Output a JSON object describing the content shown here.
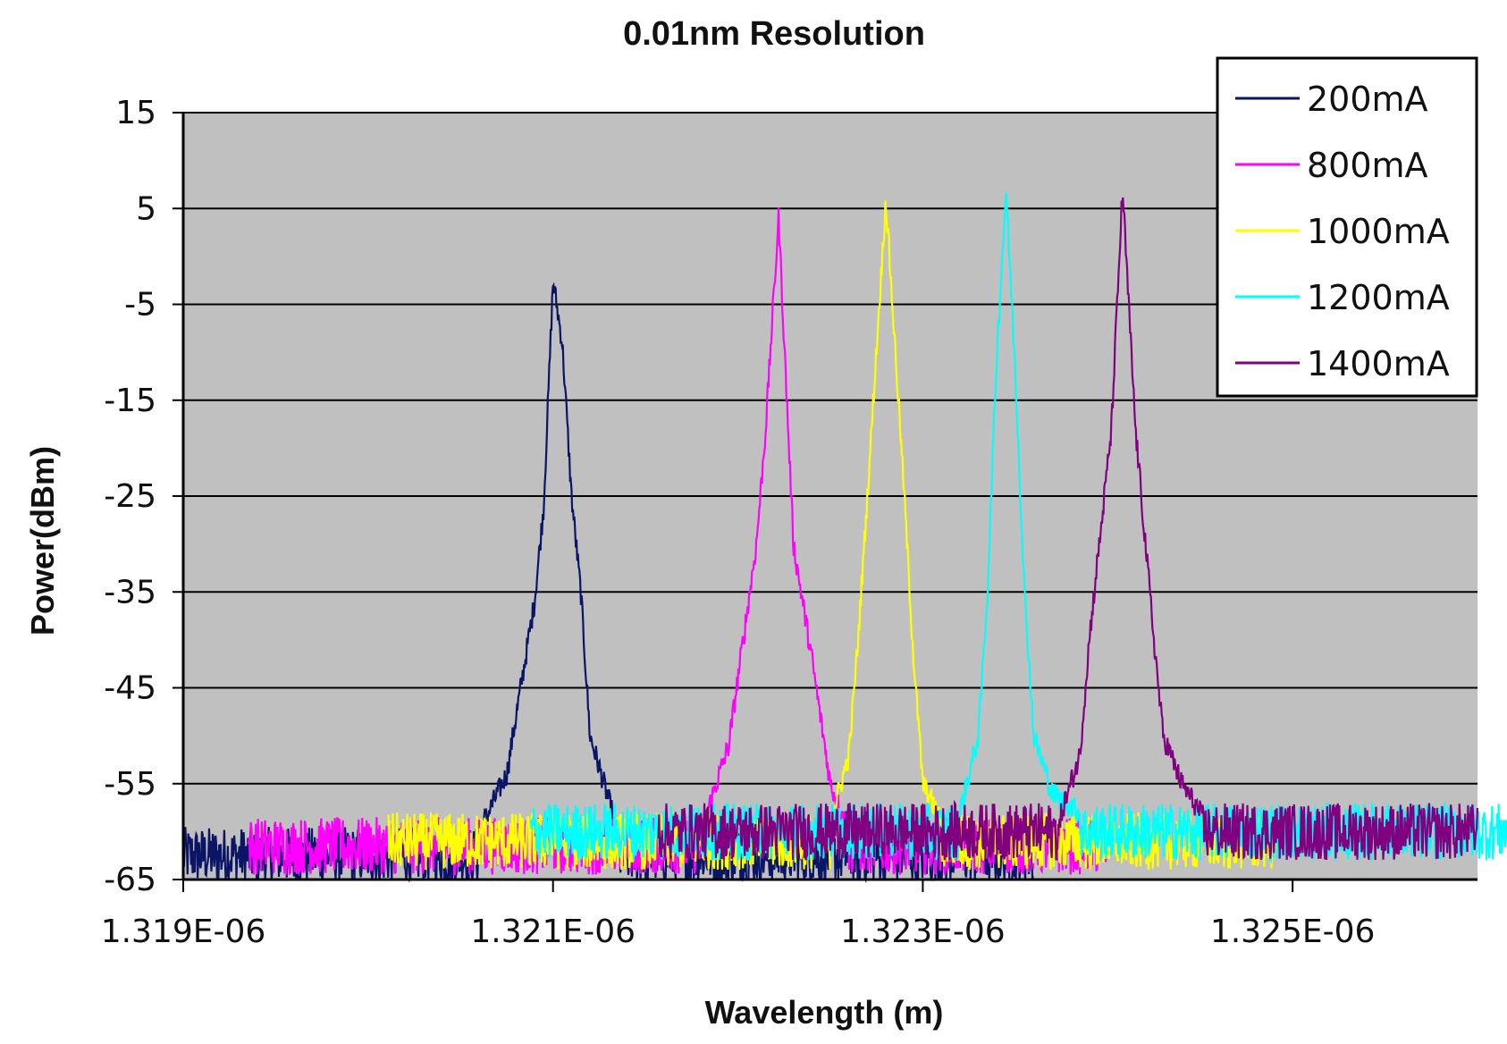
{
  "chart_data": {
    "type": "line",
    "title": "0.01nm Resolution",
    "xlabel": "Wavelength (m)",
    "ylabel": "Power(dBm)",
    "xlim": [
      1.319e-06,
      1.326e-06
    ],
    "ylim": [
      -65,
      15
    ],
    "x_ticks": [
      1.319e-06,
      1.321e-06,
      1.323e-06,
      1.325e-06
    ],
    "x_tick_labels": [
      "1.319E-06",
      "1.321E-06",
      "1.323E-06",
      "1.325E-06"
    ],
    "y_ticks": [
      15,
      5,
      -5,
      -15,
      -25,
      -35,
      -45,
      -55,
      -65
    ],
    "y_tick_labels": [
      "15",
      "5",
      "-5",
      "-15",
      "-25",
      "-35",
      "-45",
      "-55",
      "-65"
    ],
    "grid": "horizontal",
    "plot_background": "#c0c0c0",
    "legend_position": "top-right",
    "series": [
      {
        "name": "200mA",
        "color": "#0b1565",
        "x_range": [
          1.319e-06,
          1.3236e-06
        ],
        "noise_floor": -62.5,
        "peak_center": 1.321e-06,
        "points": [
          [
            1.3206e-06,
            -60
          ],
          [
            1.32075e-06,
            -54
          ],
          [
            1.3209e-06,
            -36
          ],
          [
            1.32095e-06,
            -26
          ],
          [
            1.321e-06,
            -2.5
          ],
          [
            1.32105e-06,
            -9
          ],
          [
            1.3211e-06,
            -25
          ],
          [
            1.32115e-06,
            -35
          ],
          [
            1.3212e-06,
            -50
          ],
          [
            1.32135e-06,
            -60
          ]
        ]
      },
      {
        "name": "800mA",
        "color": "#ff00ff",
        "x_range": [
          1.31935e-06,
          1.324e-06
        ],
        "noise_floor": -61.5,
        "peak_center": 1.32212e-06,
        "points": [
          [
            1.3218e-06,
            -60
          ],
          [
            1.32195e-06,
            -51
          ],
          [
            1.3221e-06,
            -30
          ],
          [
            1.32215e-06,
            -18
          ],
          [
            1.32222e-06,
            4
          ],
          [
            1.3223e-06,
            -30
          ],
          [
            1.3224e-06,
            -42
          ],
          [
            1.3225e-06,
            -55
          ],
          [
            1.3226e-06,
            -60
          ]
        ]
      },
      {
        "name": "1000mA",
        "color": "#ffff00",
        "x_range": [
          1.32011e-06,
          1.32495e-06
        ],
        "noise_floor": -61,
        "peak_center": 1.32277e-06,
        "points": [
          [
            1.3225e-06,
            -59
          ],
          [
            1.3226e-06,
            -52
          ],
          [
            1.32265e-06,
            -40
          ],
          [
            1.3227e-06,
            -25
          ],
          [
            1.3228e-06,
            6
          ],
          [
            1.3229e-06,
            -25
          ],
          [
            1.32295e-06,
            -42
          ],
          [
            1.323e-06,
            -55
          ],
          [
            1.3231e-06,
            -59
          ]
        ]
      },
      {
        "name": "1200mA",
        "color": "#00ffff",
        "x_range": [
          1.32088e-06,
          1.32655e-06
        ],
        "noise_floor": -60,
        "peak_center": 1.32343e-06,
        "points": [
          [
            1.3232e-06,
            -58
          ],
          [
            1.3233e-06,
            -50
          ],
          [
            1.32335e-06,
            -35
          ],
          [
            1.3234e-06,
            -10
          ],
          [
            1.32345e-06,
            7
          ],
          [
            1.3235e-06,
            -12
          ],
          [
            1.32355e-06,
            -35
          ],
          [
            1.3236e-06,
            -50
          ],
          [
            1.3237e-06,
            -56
          ],
          [
            1.32385e-06,
            -58
          ]
        ]
      },
      {
        "name": "1400mA",
        "color": "#800080",
        "x_range": [
          1.32157e-06,
          1.326e-06
        ],
        "noise_floor": -60,
        "peak_center": 1.32408e-06,
        "points": [
          [
            1.32375e-06,
            -58
          ],
          [
            1.32385e-06,
            -52
          ],
          [
            1.3239e-06,
            -40
          ],
          [
            1.32402e-06,
            -18
          ],
          [
            1.32408e-06,
            7
          ],
          [
            1.32415e-06,
            -18
          ],
          [
            1.32425e-06,
            -40
          ],
          [
            1.3243e-06,
            -50
          ],
          [
            1.3244e-06,
            -55
          ],
          [
            1.3245e-06,
            -58
          ]
        ]
      }
    ]
  }
}
